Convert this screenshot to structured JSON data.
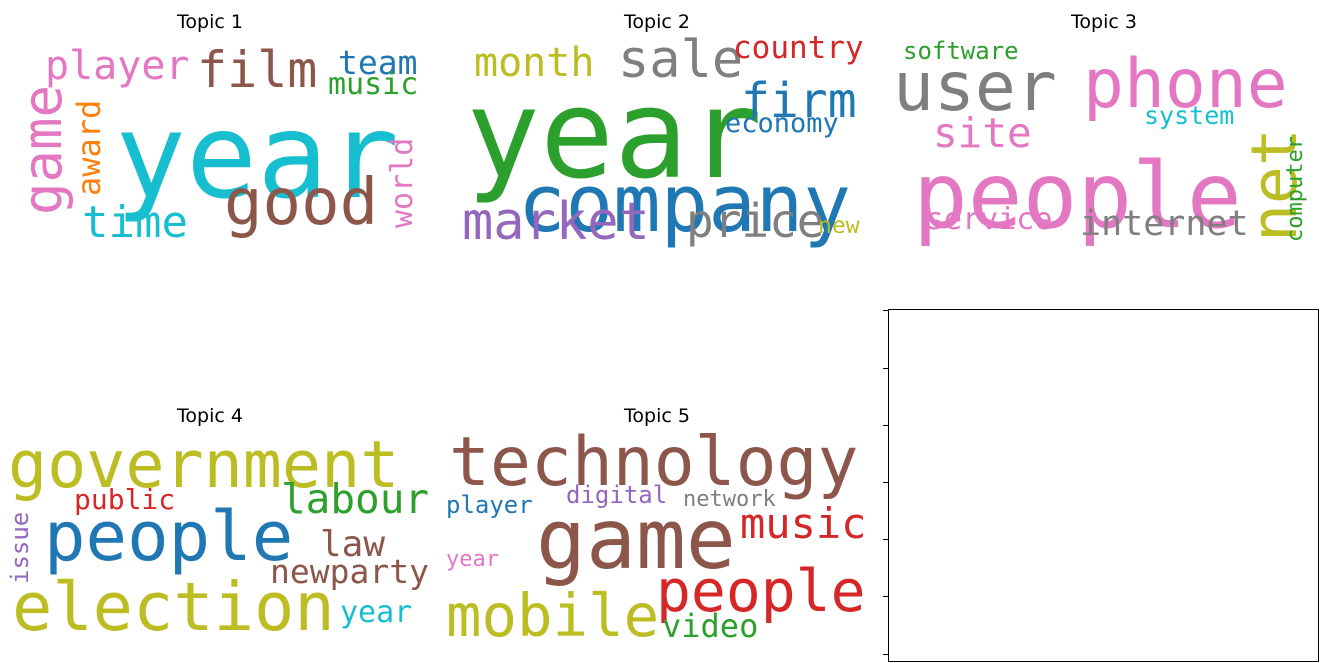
{
  "chart_data": [
    {
      "type": "wordcloud",
      "title": "Topic 1",
      "words": [
        {
          "text": "year",
          "color": "#17becf"
        },
        {
          "text": "good",
          "color": "#8c564b"
        },
        {
          "text": "game",
          "color": "#e377c2"
        },
        {
          "text": "film",
          "color": "#8c564b"
        },
        {
          "text": "player",
          "color": "#e377c2"
        },
        {
          "text": "time",
          "color": "#17becf"
        },
        {
          "text": "team",
          "color": "#1f77b4"
        },
        {
          "text": "award",
          "color": "#ff7f0e"
        },
        {
          "text": "world",
          "color": "#e377c2"
        },
        {
          "text": "music",
          "color": "#2ca02c"
        }
      ]
    },
    {
      "type": "wordcloud",
      "title": "Topic 2",
      "words": [
        {
          "text": "year",
          "color": "#2ca02c"
        },
        {
          "text": "company",
          "color": "#1f77b4"
        },
        {
          "text": "market",
          "color": "#9467bd"
        },
        {
          "text": "sale",
          "color": "#7f7f7f"
        },
        {
          "text": "price",
          "color": "#7f7f7f"
        },
        {
          "text": "firm",
          "color": "#1f77b4"
        },
        {
          "text": "month",
          "color": "#bcbd22"
        },
        {
          "text": "country",
          "color": "#d62728"
        },
        {
          "text": "economy",
          "color": "#1f77b4"
        },
        {
          "text": "new",
          "color": "#bcbd22"
        }
      ]
    },
    {
      "type": "wordcloud",
      "title": "Topic 3",
      "words": [
        {
          "text": "people",
          "color": "#e377c2"
        },
        {
          "text": "phone",
          "color": "#e377c2"
        },
        {
          "text": "user",
          "color": "#7f7f7f"
        },
        {
          "text": "net",
          "color": "#bcbd22"
        },
        {
          "text": "site",
          "color": "#e377c2"
        },
        {
          "text": "internet",
          "color": "#7f7f7f"
        },
        {
          "text": "service",
          "color": "#e377c2"
        },
        {
          "text": "software",
          "color": "#2ca02c"
        },
        {
          "text": "system",
          "color": "#17becf"
        },
        {
          "text": "computer",
          "color": "#2ca02c"
        }
      ]
    },
    {
      "type": "wordcloud",
      "title": "Topic 4",
      "words": [
        {
          "text": "government",
          "color": "#bcbd22"
        },
        {
          "text": "election",
          "color": "#bcbd22"
        },
        {
          "text": "people",
          "color": "#1f77b4"
        },
        {
          "text": "labour",
          "color": "#2ca02c"
        },
        {
          "text": "law",
          "color": "#8c564b"
        },
        {
          "text": "newparty",
          "color": "#8c564b"
        },
        {
          "text": "public",
          "color": "#d62728"
        },
        {
          "text": "year",
          "color": "#17becf"
        },
        {
          "text": "issue",
          "color": "#9467bd"
        }
      ]
    },
    {
      "type": "wordcloud",
      "title": "Topic 5",
      "words": [
        {
          "text": "game",
          "color": "#8c564b"
        },
        {
          "text": "technology",
          "color": "#8c564b"
        },
        {
          "text": "mobile",
          "color": "#bcbd22"
        },
        {
          "text": "people",
          "color": "#d62728"
        },
        {
          "text": "music",
          "color": "#d62728"
        },
        {
          "text": "video",
          "color": "#2ca02c"
        },
        {
          "text": "digital",
          "color": "#9467bd"
        },
        {
          "text": "network",
          "color": "#7f7f7f"
        },
        {
          "text": "player",
          "color": "#1f77b4"
        },
        {
          "text": "year",
          "color": "#e377c2"
        }
      ]
    }
  ]
}
